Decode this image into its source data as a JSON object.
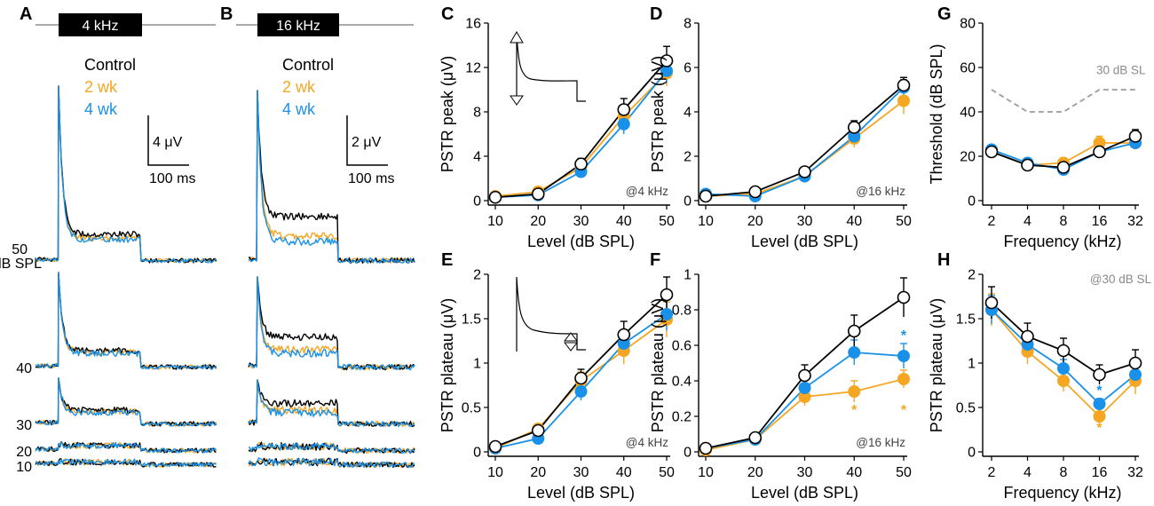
{
  "colors": {
    "control": "#000000",
    "wk2": "#f5a623",
    "wk4": "#1a91e8",
    "threshold_line": "#9b9b9b",
    "note": "#8a8a8a"
  },
  "legend": {
    "control": "Control",
    "wk2": "2 wk",
    "wk4": "4 wk"
  },
  "traces": {
    "A": {
      "panel_label": "A",
      "stim_label": "4 kHz",
      "scale_amp": "4 μV",
      "scale_time": "100 ms",
      "level_labels": [
        "50",
        "40",
        "30",
        "20",
        "10"
      ],
      "unit_label": "dB SPL"
    },
    "B": {
      "panel_label": "B",
      "stim_label": "16 kHz",
      "scale_amp": "2 μV",
      "scale_time": "100 ms"
    }
  },
  "chart_data": [
    {
      "id": "C",
      "panel_label": "C",
      "type": "line",
      "x": [
        10,
        20,
        30,
        40,
        50
      ],
      "xlim": [
        10,
        50
      ],
      "xticks": [
        "10",
        "20",
        "30",
        "40",
        "50"
      ],
      "ylim": [
        0,
        16
      ],
      "yticks": [
        "0",
        "4",
        "8",
        "12",
        "16"
      ],
      "xlabel": "Level (dB SPL)",
      "ylabel": "PSTR peak (μV)",
      "annotation": "@4 kHz",
      "series": [
        {
          "name": "Control",
          "values": [
            0.3,
            0.6,
            3.3,
            8.2,
            12.6
          ],
          "err": [
            0.1,
            0.2,
            0.5,
            1.0,
            1.3
          ]
        },
        {
          "name": "2 wk",
          "values": [
            0.4,
            0.8,
            3.0,
            7.6,
            11.5
          ],
          "err": [
            0.1,
            0.2,
            0.4,
            0.9,
            1.2
          ]
        },
        {
          "name": "4 wk",
          "values": [
            0.3,
            0.5,
            2.6,
            6.9,
            11.7
          ],
          "err": [
            0.1,
            0.2,
            0.4,
            0.9,
            1.1
          ]
        }
      ]
    },
    {
      "id": "D",
      "panel_label": "D",
      "type": "line",
      "x": [
        10,
        20,
        30,
        40,
        50
      ],
      "xlim": [
        10,
        50
      ],
      "xticks": [
        "10",
        "20",
        "30",
        "40",
        "50"
      ],
      "ylim": [
        0,
        8
      ],
      "yticks": [
        "0",
        "2",
        "4",
        "6",
        "8"
      ],
      "xlabel": "Level (dB SPL)",
      "ylabel": "PSTR peak (μV)",
      "annotation": "@16 kHz",
      "series": [
        {
          "name": "Control",
          "values": [
            0.2,
            0.4,
            1.3,
            3.3,
            5.2
          ],
          "err": [
            0.05,
            0.1,
            0.15,
            0.3,
            0.35
          ]
        },
        {
          "name": "2 wk",
          "values": [
            0.2,
            0.3,
            1.1,
            2.8,
            4.5
          ],
          "err": [
            0.05,
            0.1,
            0.15,
            0.4,
            0.6
          ]
        },
        {
          "name": "4 wk",
          "values": [
            0.3,
            0.2,
            1.1,
            2.9,
            5.1
          ],
          "err": [
            0.05,
            0.1,
            0.15,
            0.3,
            0.35
          ]
        }
      ]
    },
    {
      "id": "G",
      "panel_label": "G",
      "type": "line",
      "x": [
        "2",
        "4",
        "8",
        "16",
        "32"
      ],
      "xlim": [
        0,
        4
      ],
      "xticks": [
        "2",
        "4",
        "8",
        "16",
        "32"
      ],
      "ylim": [
        0,
        80
      ],
      "yticks": [
        "0",
        "20",
        "40",
        "60",
        "80"
      ],
      "xlabel": "Frequency (kHz)",
      "ylabel": "Threshold  (dB SPL)",
      "annotation": "30 dB SL",
      "reference_line": {
        "name": "30 dB SL",
        "x": [
          0,
          1,
          2,
          3,
          4
        ],
        "values": [
          50,
          40,
          40,
          50,
          50
        ]
      },
      "series": [
        {
          "name": "Control",
          "values": [
            22,
            16,
            15,
            22,
            29
          ],
          "err": [
            1.5,
            1.5,
            1.5,
            2,
            3
          ]
        },
        {
          "name": "2 wk",
          "values": [
            22,
            16,
            17,
            26,
            26
          ],
          "err": [
            1.5,
            1.5,
            1.5,
            3,
            3
          ]
        },
        {
          "name": "4 wk",
          "values": [
            23,
            17,
            14,
            22,
            26
          ],
          "err": [
            1.5,
            1.5,
            1.5,
            2,
            2
          ]
        }
      ]
    },
    {
      "id": "E",
      "panel_label": "E",
      "type": "line",
      "x": [
        10,
        20,
        30,
        40,
        50
      ],
      "xlim": [
        10,
        50
      ],
      "xticks": [
        "10",
        "20",
        "30",
        "40",
        "50"
      ],
      "ylim": [
        0,
        2
      ],
      "yticks": [
        "0",
        "0.5",
        "1",
        "1.5",
        "2"
      ],
      "xlabel": "Level (dB SPL)",
      "ylabel": "PSTR plateau (μV)",
      "annotation": "@4 kHz",
      "series": [
        {
          "name": "Control",
          "values": [
            0.06,
            0.24,
            0.83,
            1.32,
            1.77
          ],
          "err": [
            0.02,
            0.04,
            0.1,
            0.15,
            0.2
          ]
        },
        {
          "name": "2 wk",
          "values": [
            0.04,
            0.26,
            0.8,
            1.14,
            1.49
          ],
          "err": [
            0.02,
            0.04,
            0.1,
            0.15,
            0.2
          ]
        },
        {
          "name": "4 wk",
          "values": [
            0.04,
            0.15,
            0.68,
            1.22,
            1.55
          ],
          "err": [
            0.02,
            0.04,
            0.1,
            0.15,
            0.18
          ]
        }
      ]
    },
    {
      "id": "F",
      "panel_label": "F",
      "type": "line",
      "x": [
        10,
        20,
        30,
        40,
        50
      ],
      "xlim": [
        10,
        50
      ],
      "xticks": [
        "10",
        "20",
        "30",
        "40",
        "50"
      ],
      "ylim": [
        0,
        1
      ],
      "yticks": [
        "0",
        "0.2",
        "0.4",
        "0.6",
        "0.8",
        "1"
      ],
      "xlabel": "Level (dB SPL)",
      "ylabel": "PSTR plateau (μV)",
      "annotation": "@16 kHz",
      "series": [
        {
          "name": "Control",
          "values": [
            0.02,
            0.08,
            0.43,
            0.68,
            0.87
          ],
          "err": [
            0.01,
            0.02,
            0.06,
            0.09,
            0.11
          ]
        },
        {
          "name": "2 wk",
          "values": [
            0.01,
            0.07,
            0.31,
            0.34,
            0.41
          ],
          "err": [
            0.01,
            0.02,
            0.05,
            0.06,
            0.05
          ]
        },
        {
          "name": "4 wk",
          "values": [
            0.02,
            0.07,
            0.36,
            0.56,
            0.54
          ],
          "err": [
            0.01,
            0.02,
            0.05,
            0.07,
            0.07
          ]
        }
      ],
      "significance": [
        {
          "series": "4 wk",
          "x": 50,
          "y": 0.66,
          "mark": "*"
        },
        {
          "series": "2 wk",
          "x": 40,
          "y": 0.24,
          "mark": "*"
        },
        {
          "series": "2 wk",
          "x": 50,
          "y": 0.24,
          "mark": "*"
        }
      ]
    },
    {
      "id": "H",
      "panel_label": "H",
      "type": "line",
      "x": [
        "2",
        "4",
        "8",
        "16",
        "32"
      ],
      "xlim": [
        0,
        4
      ],
      "xticks": [
        "2",
        "4",
        "8",
        "16",
        "32"
      ],
      "ylim": [
        0,
        2
      ],
      "yticks": [
        "0",
        "0.5",
        "1",
        "1.5",
        "2"
      ],
      "xlabel": "Frequency (kHz)",
      "ylabel": "PSTR plateau  (μV)",
      "annotation": "@30 dB SL",
      "series": [
        {
          "name": "Control",
          "values": [
            1.68,
            1.3,
            1.14,
            0.87,
            1.0
          ],
          "err": [
            0.18,
            0.15,
            0.14,
            0.11,
            0.15
          ]
        },
        {
          "name": "2 wk",
          "values": [
            1.6,
            1.13,
            0.8,
            0.4,
            0.8
          ],
          "err": [
            0.18,
            0.14,
            0.12,
            0.05,
            0.15
          ]
        },
        {
          "name": "4 wk",
          "values": [
            1.6,
            1.21,
            0.94,
            0.54,
            0.87
          ],
          "err": [
            0.16,
            0.13,
            0.1,
            0.06,
            0.12
          ]
        }
      ],
      "significance": [
        {
          "series": "4 wk",
          "x": "16",
          "y": 0.7,
          "mark": "*"
        },
        {
          "series": "2 wk",
          "x": "16",
          "y": 0.28,
          "mark": "*"
        }
      ]
    }
  ]
}
